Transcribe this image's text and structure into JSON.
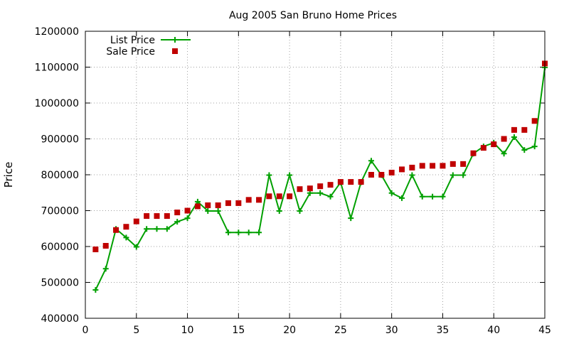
{
  "chart_data": {
    "type": "line",
    "title": "Aug 2005 San Bruno Home Prices",
    "xlabel": "",
    "ylabel": "Price",
    "xlim": [
      0,
      45
    ],
    "ylim": [
      400000,
      1200000
    ],
    "xticks": [
      0,
      5,
      10,
      15,
      20,
      25,
      30,
      35,
      40,
      45
    ],
    "yticks": [
      400000,
      500000,
      600000,
      700000,
      800000,
      900000,
      1000000,
      1100000,
      1200000
    ],
    "grid": true,
    "legend_position": "top-left",
    "series": [
      {
        "name": "List Price",
        "style": "line+plus",
        "color": "#00a000",
        "x": [
          1,
          2,
          3,
          4,
          5,
          6,
          7,
          8,
          9,
          10,
          11,
          12,
          13,
          14,
          15,
          16,
          17,
          18,
          19,
          20,
          21,
          22,
          23,
          24,
          25,
          26,
          27,
          28,
          29,
          30,
          31,
          32,
          33,
          34,
          35,
          36,
          37,
          38,
          39,
          40,
          41,
          42,
          43,
          44,
          45
        ],
        "y": [
          479000,
          538000,
          649000,
          625000,
          599000,
          649000,
          649000,
          649000,
          669000,
          679000,
          725000,
          699000,
          699000,
          639000,
          639000,
          639000,
          639000,
          799000,
          699000,
          799000,
          699000,
          749000,
          749000,
          739000,
          779000,
          679000,
          779000,
          839000,
          799000,
          749000,
          735000,
          799000,
          739000,
          739000,
          739000,
          799000,
          799000,
          859000,
          879000,
          889000,
          859000,
          905000,
          869000,
          879000,
          1099000
        ]
      },
      {
        "name": "Sale Price",
        "style": "square",
        "color": "#c00000",
        "x": [
          1,
          2,
          3,
          4,
          5,
          6,
          7,
          8,
          9,
          10,
          11,
          12,
          13,
          14,
          15,
          16,
          17,
          18,
          19,
          20,
          21,
          22,
          23,
          24,
          25,
          26,
          27,
          28,
          29,
          30,
          31,
          32,
          33,
          34,
          35,
          36,
          37,
          38,
          39,
          40,
          41,
          42,
          43,
          44,
          45
        ],
        "y": [
          592000,
          602000,
          646000,
          655000,
          670000,
          685000,
          685000,
          685000,
          695000,
          700000,
          712000,
          715000,
          715000,
          721000,
          721000,
          730000,
          730000,
          740000,
          740000,
          740000,
          760000,
          762000,
          768000,
          772000,
          780000,
          780000,
          780000,
          800000,
          800000,
          806000,
          815000,
          820000,
          825000,
          825000,
          825000,
          830000,
          830000,
          860000,
          875000,
          885000,
          900000,
          925000,
          925000,
          950000,
          1110000
        ]
      }
    ]
  }
}
